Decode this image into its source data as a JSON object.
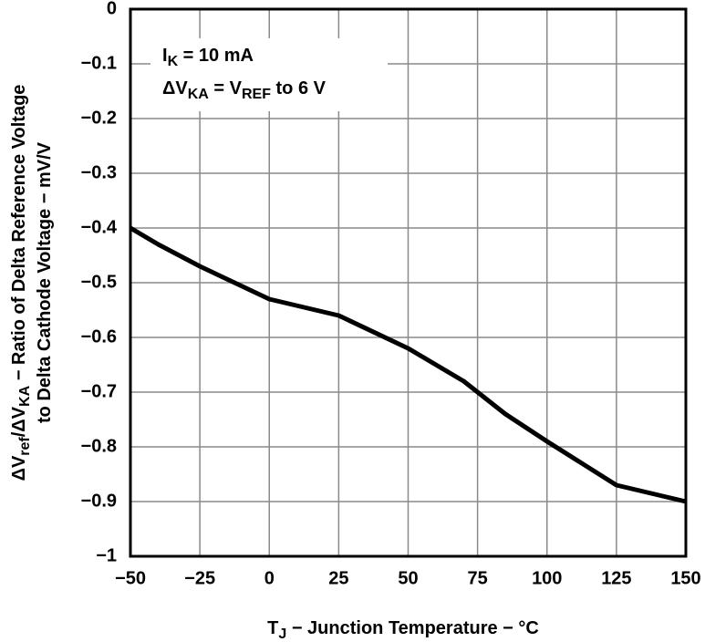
{
  "chart_data": {
    "type": "line",
    "annotation_lines": [
      [
        "I",
        "K",
        " = 10 mA"
      ],
      [
        "ΔV",
        "KA",
        " = V",
        "REF",
        " to 6 V"
      ]
    ],
    "y_label_lines": [
      [
        "ΔV",
        "ref",
        "/ΔV",
        "KA",
        " − Ratio of Delta Reference Voltage"
      ],
      [
        "to Delta Cathode Voltage − mV/V"
      ]
    ],
    "x_label": [
      "T",
      "J",
      " − Junction Temperature − °C"
    ],
    "x": [
      -50,
      -40,
      -25,
      0,
      25,
      50,
      70,
      85,
      100,
      125,
      150
    ],
    "values": [
      -0.4,
      -0.43,
      -0.47,
      -0.53,
      -0.56,
      -0.62,
      -0.68,
      -0.74,
      -0.79,
      -0.87,
      -0.9
    ],
    "color": "#000000",
    "xlim": [
      -50,
      150
    ],
    "xticks": [
      {
        "value": -50,
        "label": "−50"
      },
      {
        "value": -25,
        "label": "−25"
      },
      0,
      25,
      50,
      75,
      100,
      125,
      150
    ],
    "ylim": [
      -1,
      0
    ],
    "yticks": [
      0,
      {
        "value": -0.1,
        "label": "−0.1"
      },
      {
        "value": -0.2,
        "label": "−0.2"
      },
      {
        "value": -0.3,
        "label": "−0.3"
      },
      {
        "value": -0.4,
        "label": "−0.4"
      },
      {
        "value": -0.5,
        "label": "−0.5"
      },
      {
        "value": -0.6,
        "label": "−0.6"
      },
      {
        "value": -0.7,
        "label": "−0.7"
      },
      {
        "value": -0.8,
        "label": "−0.8"
      },
      {
        "value": -0.9,
        "label": "−0.9"
      },
      {
        "value": -1,
        "label": "−1"
      }
    ],
    "grid": true
  }
}
